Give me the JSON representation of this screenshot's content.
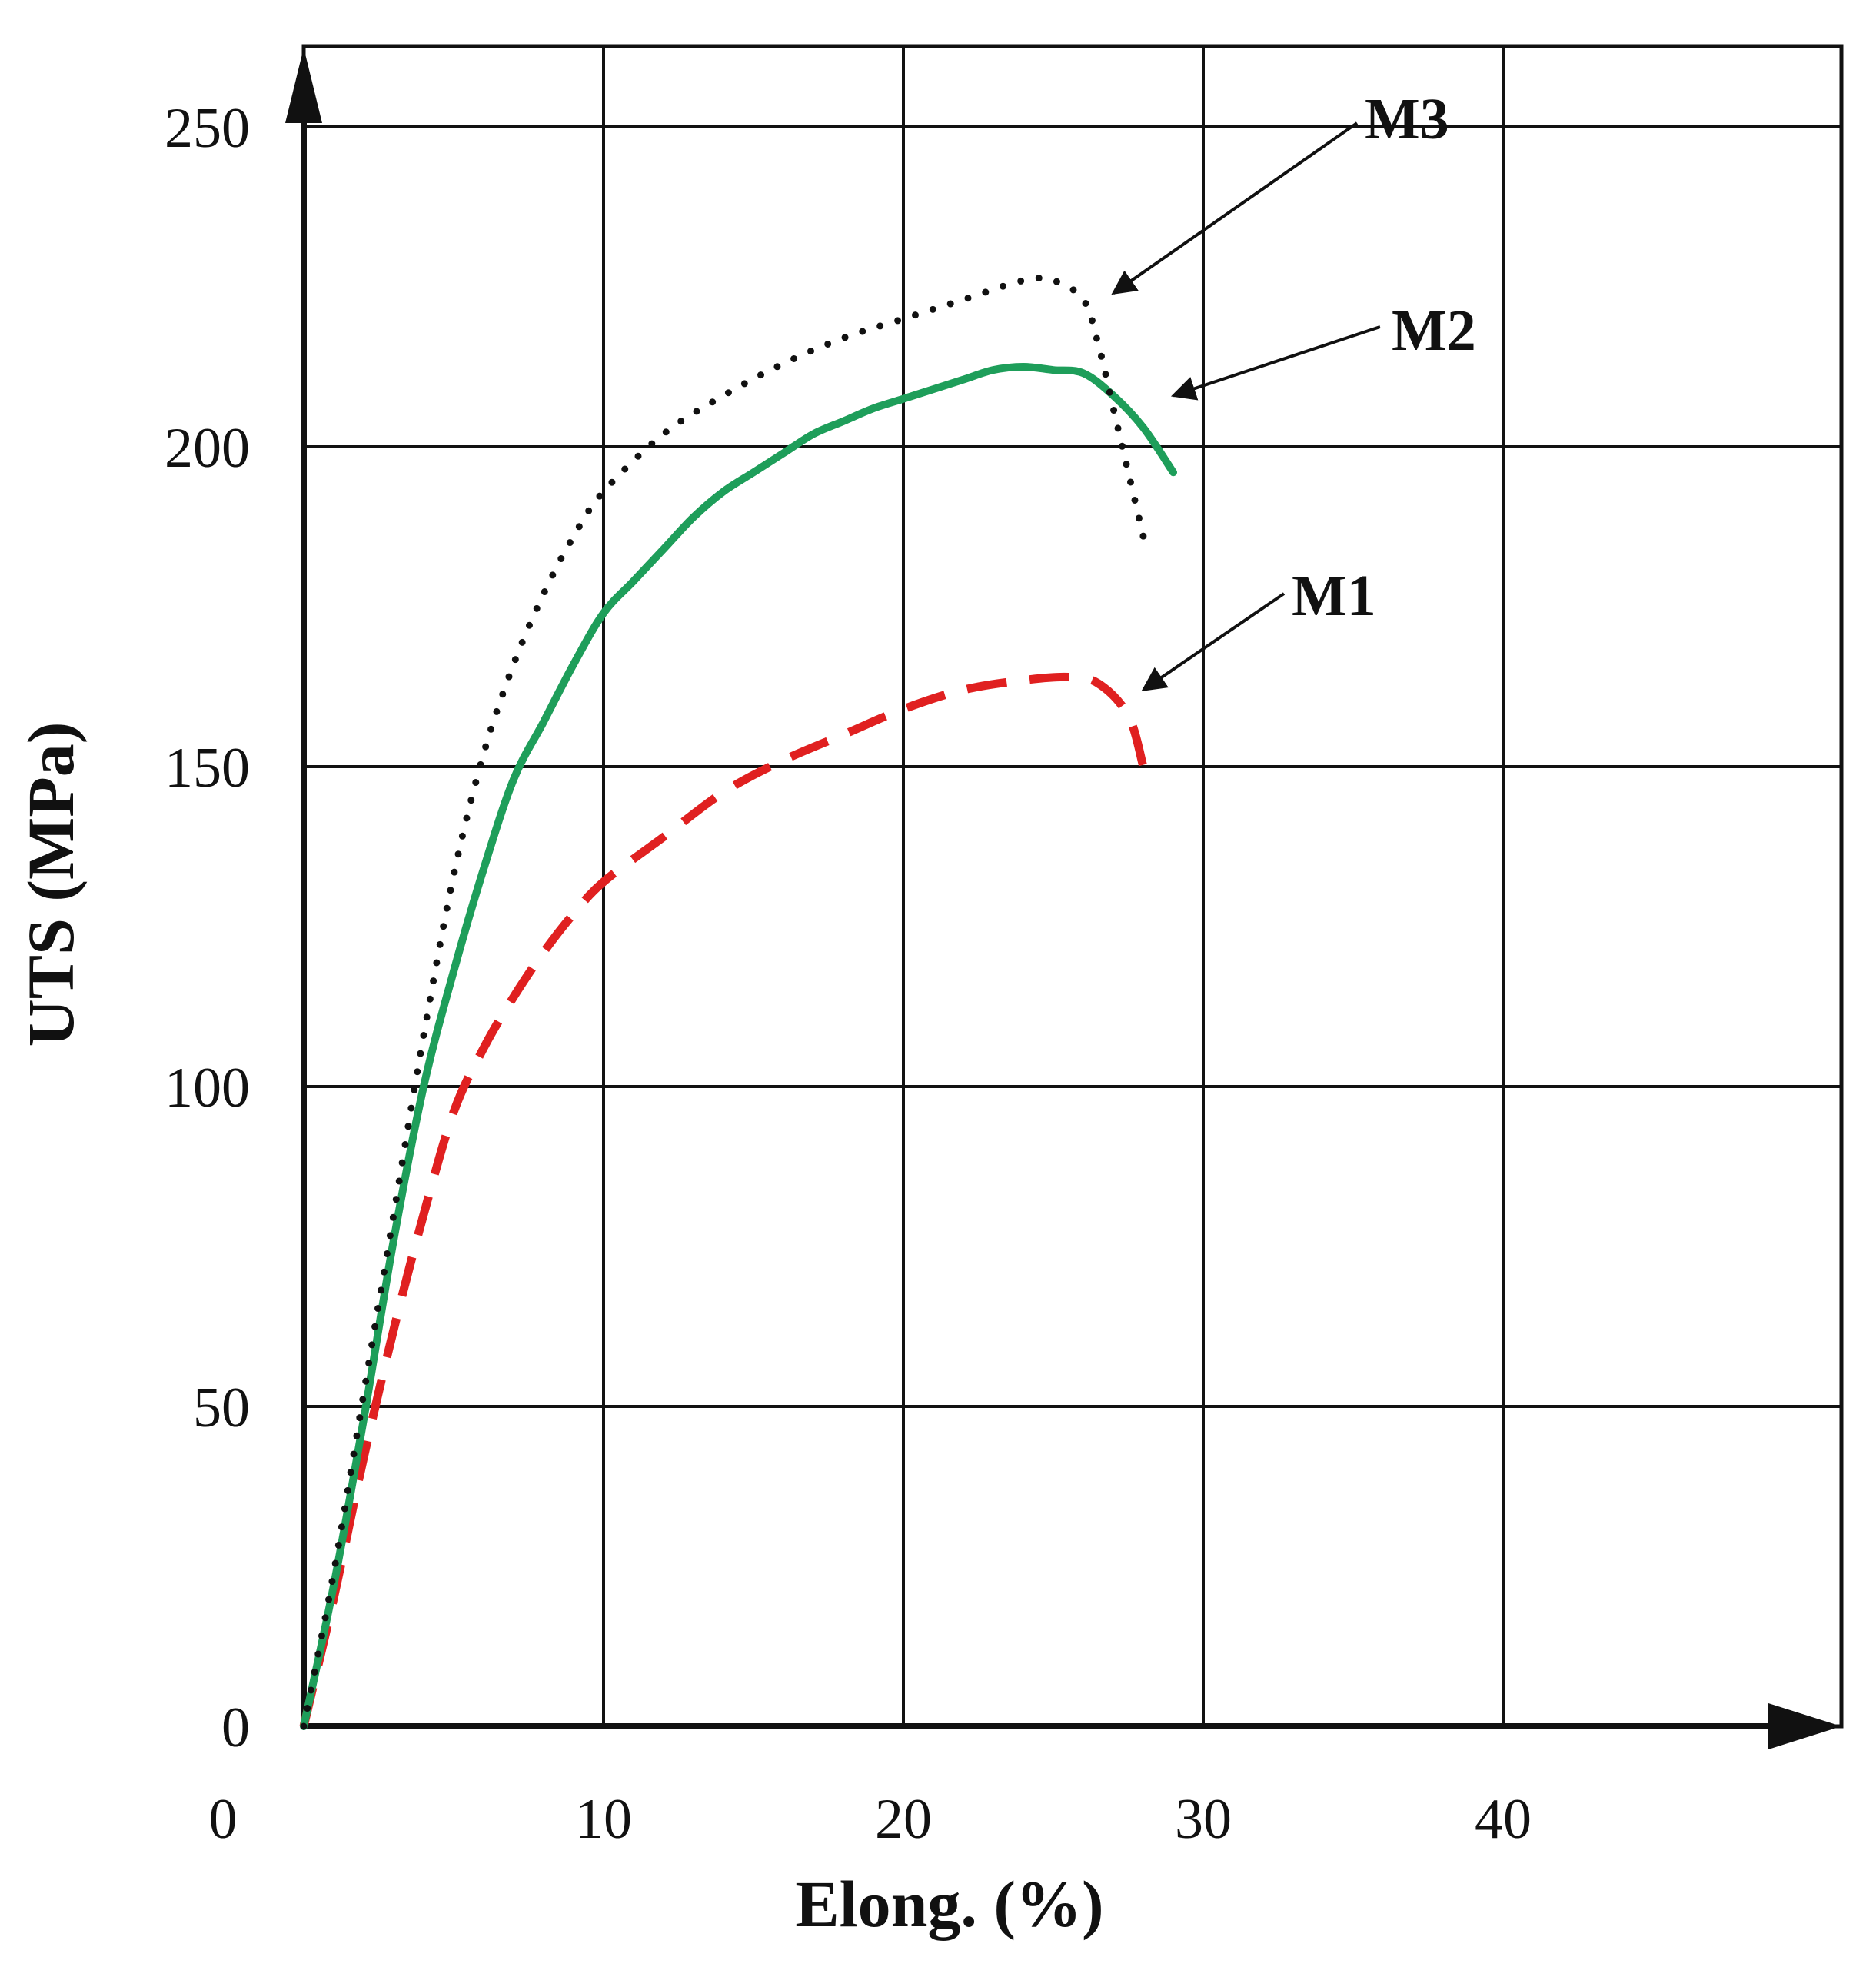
{
  "chart_data": {
    "type": "line",
    "title": "",
    "xlabel": "Elong. (%)",
    "ylabel": "UTS (MPa)",
    "xlim": [
      0,
      50
    ],
    "ylim": [
      0,
      260
    ],
    "x_ticks": [
      0,
      10,
      20,
      30,
      40
    ],
    "y_ticks": [
      0,
      50,
      100,
      150,
      200,
      250
    ],
    "grid": true,
    "legend": "none (series labelled by arrow callouts)",
    "series": [
      {
        "name": "M1",
        "color": "#e02020",
        "line_style": "dashed",
        "x": [
          0,
          1,
          2,
          3,
          4,
          5,
          6,
          7,
          8,
          9,
          10,
          12,
          14,
          16,
          18,
          20,
          22,
          24,
          25.5,
          26.5,
          27.5,
          28
        ],
        "y": [
          0,
          20,
          42,
          62,
          80,
          96,
          106,
          114,
          121,
          127,
          132,
          139,
          146,
          151,
          155,
          159,
          162,
          163.5,
          164,
          163,
          158,
          150
        ]
      },
      {
        "name": "M2",
        "color": "#1e9e5a",
        "line_style": "solid",
        "x": [
          0,
          1,
          2,
          3,
          4,
          5,
          6,
          7,
          8,
          9,
          10,
          11,
          12,
          13,
          14,
          15,
          16,
          17,
          18,
          19,
          20,
          21,
          22,
          23,
          24,
          25,
          26,
          27,
          28,
          29
        ],
        "y": [
          0,
          22,
          48,
          76,
          100,
          118,
          134,
          148,
          157,
          166,
          174,
          179,
          184,
          189,
          193,
          196,
          199,
          202,
          204,
          206,
          207.5,
          209,
          210.5,
          212,
          212.5,
          212,
          211.5,
          208,
          203,
          196
        ]
      },
      {
        "name": "M3",
        "color": "#111111",
        "line_style": "dotted",
        "x": [
          0,
          1,
          2,
          3,
          4,
          5,
          6,
          7,
          8,
          9,
          10,
          12,
          14,
          16,
          18,
          20,
          22,
          24,
          25,
          26,
          26.5,
          27,
          27.5,
          28
        ],
        "y": [
          0,
          24,
          52,
          80,
          108,
          133,
          152,
          166,
          177,
          186,
          193,
          202,
          208,
          213,
          217,
          220,
          223,
          226,
          226,
          223,
          216,
          206,
          196,
          186
        ]
      }
    ],
    "annotations": [
      {
        "text": "M3",
        "points_to": [
          27,
          224
        ]
      },
      {
        "text": "M2",
        "points_to": [
          29,
          208
        ]
      },
      {
        "text": "M1",
        "points_to": [
          28,
          162
        ]
      }
    ]
  }
}
